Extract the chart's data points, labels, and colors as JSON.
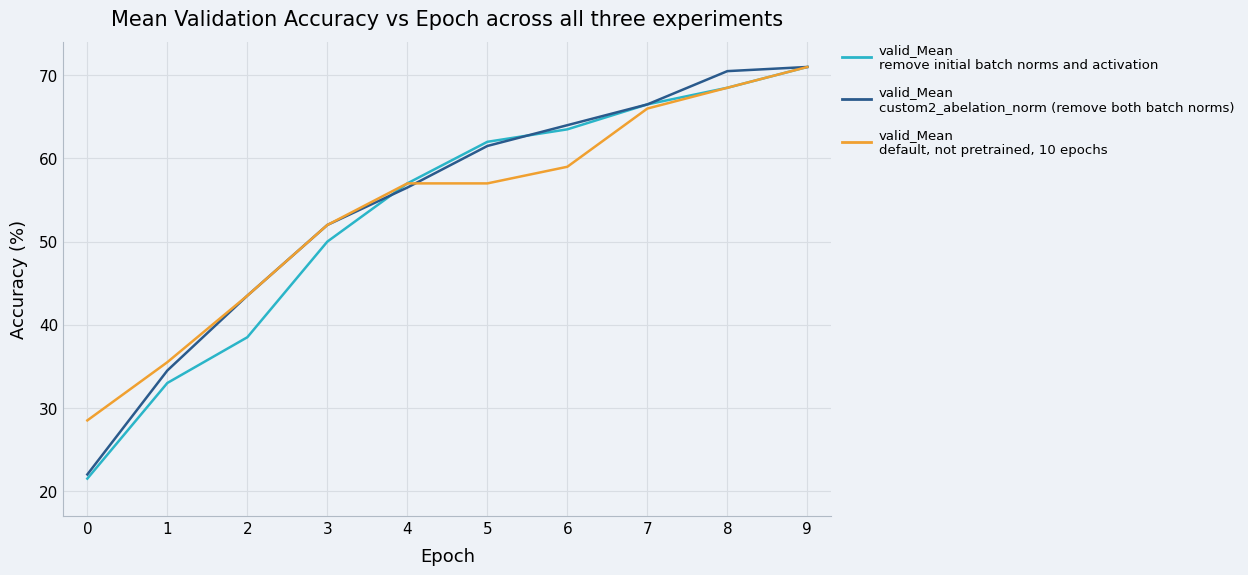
{
  "title": "Mean Validation Accuracy vs Epoch across all three experiments",
  "xlabel": "Epoch",
  "ylabel": "Accuracy (%)",
  "series": [
    {
      "label_line1": "valid_Mean",
      "label_line2": "remove initial batch norms and activation",
      "color": "#2ab5c8",
      "linewidth": 1.8,
      "epochs": [
        0,
        1,
        2,
        3,
        4,
        5,
        6,
        7,
        8,
        9
      ],
      "values": [
        21.5,
        33.0,
        38.5,
        50.0,
        57.0,
        62.0,
        63.5,
        66.5,
        68.5,
        71.0
      ]
    },
    {
      "label_line1": "valid_Mean",
      "label_line2": "custom2_abelation_norm (remove both batch norms)",
      "color": "#2a5a8c",
      "linewidth": 1.8,
      "epochs": [
        0,
        1,
        2,
        3,
        4,
        5,
        6,
        7,
        8,
        9
      ],
      "values": [
        22.0,
        34.5,
        43.5,
        52.0,
        56.5,
        61.5,
        64.0,
        66.5,
        70.5,
        71.0
      ]
    },
    {
      "label_line1": "valid_Mean",
      "label_line2": "default, not pretrained, 10 epochs",
      "color": "#f0a030",
      "linewidth": 1.8,
      "epochs": [
        0,
        1,
        2,
        3,
        4,
        5,
        6,
        7,
        8,
        9
      ],
      "values": [
        28.5,
        35.5,
        43.5,
        52.0,
        57.0,
        57.0,
        59.0,
        66.0,
        68.5,
        71.0
      ]
    }
  ],
  "xlim": [
    -0.3,
    9.3
  ],
  "ylim": [
    17,
    74
  ],
  "xticks": [
    0,
    1,
    2,
    3,
    4,
    5,
    6,
    7,
    8,
    9
  ],
  "yticks": [
    20,
    30,
    40,
    50,
    60,
    70
  ],
  "grid_color": "#d8dde3",
  "background_color": "#eef2f7",
  "title_fontsize": 15,
  "axis_label_fontsize": 13,
  "tick_fontsize": 11,
  "legend_fontsize": 9.5
}
